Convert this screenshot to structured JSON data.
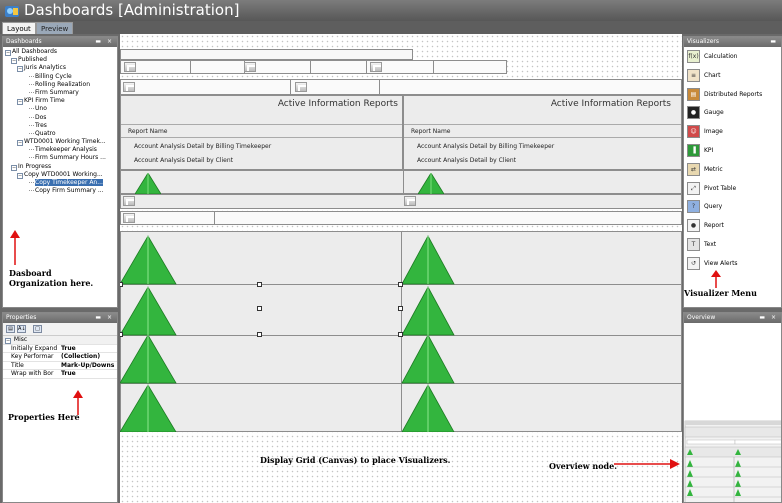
{
  "title": "Dashboards [Administration]",
  "tabs": [
    {
      "label": "Layout"
    },
    {
      "label": "Preview"
    }
  ],
  "dashboards_panel": {
    "header": "Dashboards",
    "buttons": "▬ ×",
    "tree": [
      {
        "label": "All Dashboards",
        "expander": "−"
      },
      {
        "label": "Published",
        "expander": "−"
      },
      {
        "label": "Juris Analytics",
        "expander": "−"
      },
      {
        "label": "Billing Cycle"
      },
      {
        "label": "Rolling Realization"
      },
      {
        "label": "Firm Summary"
      },
      {
        "label": "KPI Firm Time",
        "expander": "−"
      },
      {
        "label": "Uno"
      },
      {
        "label": "Dos"
      },
      {
        "label": "Tres"
      },
      {
        "label": "Quatro"
      },
      {
        "label": "WTD0001 Working Timek...",
        "expander": "−"
      },
      {
        "label": "Timekeeper Analysis"
      },
      {
        "label": "Firm Summary Hours ..."
      },
      {
        "label": "In Progress",
        "expander": "−"
      },
      {
        "label": "Copy WTD0001 Working...",
        "expander": "−"
      },
      {
        "label": "Copy Timekeeper An...",
        "selected": true
      },
      {
        "label": "Copy Firm Summary ..."
      }
    ]
  },
  "annotations": {
    "dashboard": "Dasboard Organization here.",
    "properties": "Properties Here",
    "visualizer": "Visualizer Menu",
    "canvas": "Display Grid (Canvas) to place Visualizers.",
    "overview": "Overview node."
  },
  "properties_panel": {
    "header": "Properties",
    "buttons": "▬ ×",
    "toolbar_icons": [
      "categorized-icon",
      "sort-az-icon",
      "property-pages-icon"
    ],
    "toolbar_glyphs": [
      "▤",
      "A↓",
      "□"
    ],
    "category": "Misc",
    "category_expander": "−",
    "rows": [
      {
        "name": "Initially Expand",
        "value": "True"
      },
      {
        "name": "Key Performar",
        "value": "(Collection)"
      },
      {
        "name": "Title",
        "value": "Mark-Up/Downs"
      },
      {
        "name": "Wrap with Bor",
        "value": "True"
      }
    ]
  },
  "reports": [
    {
      "title": "Active Information Reports",
      "column": "Report Name",
      "items": [
        "Account Analysis Detail by Billing Timekeeper",
        "Account Analysis Detail by Client"
      ]
    },
    {
      "title": "Active Information Reports",
      "column": "Report Name",
      "items": [
        "Account Analysis Detail by Billing Timekeeper",
        "Account Analysis Detail by Client"
      ]
    }
  ],
  "visualizers_panel": {
    "header": "Visualizers",
    "buttons": "▬",
    "items": [
      {
        "label": "Calculation",
        "icon": "calculation-icon",
        "glyph": "f(x)",
        "color": "#e8f0d0"
      },
      {
        "label": "Chart",
        "icon": "chart-icon",
        "glyph": "≡",
        "color": "#f0e2c8"
      },
      {
        "label": "Distributed Reports",
        "icon": "distributed-reports-icon",
        "glyph": "▤",
        "color": "#c88a3a"
      },
      {
        "label": "Gauge",
        "icon": "gauge-icon",
        "glyph": "●",
        "color": "#222222"
      },
      {
        "label": "Image",
        "icon": "image-icon",
        "glyph": "☺",
        "color": "#d04a4a"
      },
      {
        "label": "KPI",
        "icon": "kpi-icon",
        "glyph": "▐",
        "color": "#2e9a3a"
      },
      {
        "label": "Metric",
        "icon": "metric-icon",
        "glyph": "⇄",
        "color": "#e8d8b0"
      },
      {
        "label": "Pivot Table",
        "icon": "pivot-table-icon",
        "glyph": "⤢",
        "color": "#f2f2f2"
      },
      {
        "label": "Query",
        "icon": "query-icon",
        "glyph": "?",
        "color": "#8fb0e0"
      },
      {
        "label": "Report",
        "icon": "report-icon",
        "glyph": "●",
        "color": "#f4f4f4"
      },
      {
        "label": "Text",
        "icon": "text-icon",
        "glyph": "T",
        "color": "#e4e4e4"
      },
      {
        "label": "View Alerts",
        "icon": "view-alerts-icon",
        "glyph": "↺",
        "color": "#f2f2f2"
      }
    ]
  },
  "overview_panel": {
    "header": "Overview",
    "buttons": "▬ ×"
  },
  "colors": {
    "title_bar": "#666666",
    "selected": "#3a6fb0",
    "kpi_green": "#33b53e",
    "annotation_red": "#e01010"
  }
}
